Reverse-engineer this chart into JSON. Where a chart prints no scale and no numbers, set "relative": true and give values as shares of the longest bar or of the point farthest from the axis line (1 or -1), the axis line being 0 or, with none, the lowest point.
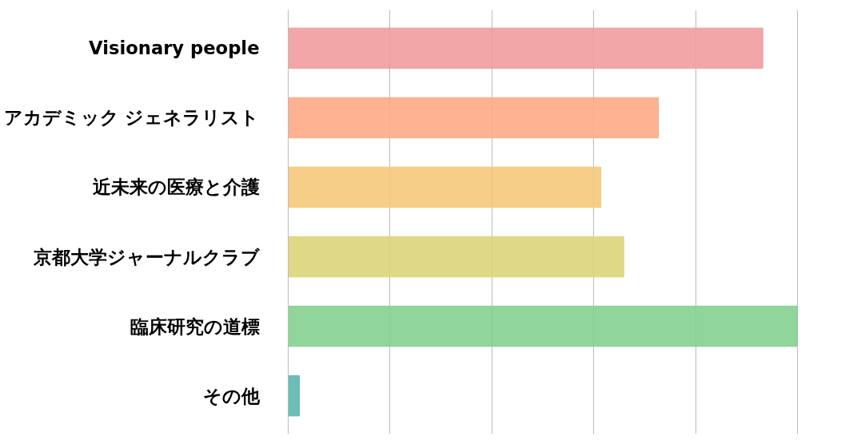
{
  "chart_data": {
    "type": "bar",
    "orientation": "horizontal",
    "relative": true,
    "grid": "x",
    "categories": [
      "Visionary people",
      "アカデミック ジェネラリスト",
      "近未来の医療と介護",
      "京都大学ジャーナルクラブ",
      "臨床研究の道標",
      "その他"
    ],
    "values": [
      0.932,
      0.727,
      0.614,
      0.659,
      1,
      0.022
    ],
    "colors": [
      "#f29c9f",
      "#fdab86",
      "#f6c97b",
      "#dcd57a",
      "#84d08f",
      "#5db7ae"
    ]
  }
}
